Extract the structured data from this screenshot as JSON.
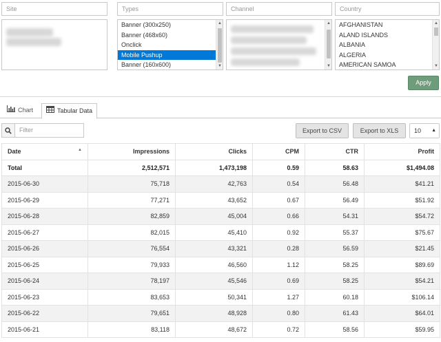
{
  "filters": {
    "site": {
      "title": "Site"
    },
    "types": {
      "title": "Types",
      "options": [
        "Banner (300x250)",
        "Banner (468x60)",
        "Onclick",
        "Mobile Pushup",
        "Banner (160x600)"
      ],
      "selected_index": 3
    },
    "channel": {
      "title": "Channel"
    },
    "country": {
      "title": "Country",
      "options": [
        "AFGHANISTAN",
        "ALAND ISLANDS",
        "ALBANIA",
        "ALGERIA",
        "AMERICAN SAMOA"
      ]
    },
    "apply_label": "Apply"
  },
  "tabs": [
    {
      "label": "Chart",
      "icon": "bar-chart-icon",
      "active": false
    },
    {
      "label": "Tabular Data",
      "icon": "table-icon",
      "active": true
    }
  ],
  "toolbar": {
    "filter_placeholder": "Filter",
    "export_csv": "Export to CSV",
    "export_xls": "Export to XLS",
    "page_size": "10"
  },
  "table": {
    "columns": [
      "Date",
      "Impressions",
      "Clicks",
      "CPM",
      "CTR",
      "Profit"
    ],
    "total": {
      "date": "Total",
      "impressions": "2,512,571",
      "clicks": "1,473,198",
      "cpm": "0.59",
      "ctr": "58.63",
      "profit": "$1,494.08"
    },
    "rows": [
      {
        "date": "2015-06-30",
        "impressions": "75,718",
        "clicks": "42,763",
        "cpm": "0.54",
        "ctr": "56.48",
        "profit": "$41.21"
      },
      {
        "date": "2015-06-29",
        "impressions": "77,271",
        "clicks": "43,652",
        "cpm": "0.67",
        "ctr": "56.49",
        "profit": "$51.92"
      },
      {
        "date": "2015-06-28",
        "impressions": "82,859",
        "clicks": "45,004",
        "cpm": "0.66",
        "ctr": "54.31",
        "profit": "$54.72"
      },
      {
        "date": "2015-06-27",
        "impressions": "82,015",
        "clicks": "45,410",
        "cpm": "0.92",
        "ctr": "55.37",
        "profit": "$75.67"
      },
      {
        "date": "2015-06-26",
        "impressions": "76,554",
        "clicks": "43,321",
        "cpm": "0.28",
        "ctr": "56.59",
        "profit": "$21.45"
      },
      {
        "date": "2015-06-25",
        "impressions": "79,933",
        "clicks": "46,560",
        "cpm": "1.12",
        "ctr": "58.25",
        "profit": "$89.69"
      },
      {
        "date": "2015-06-24",
        "impressions": "78,197",
        "clicks": "45,546",
        "cpm": "0.69",
        "ctr": "58.25",
        "profit": "$54.21"
      },
      {
        "date": "2015-06-23",
        "impressions": "83,653",
        "clicks": "50,341",
        "cpm": "1.27",
        "ctr": "60.18",
        "profit": "$106.14"
      },
      {
        "date": "2015-06-22",
        "impressions": "79,651",
        "clicks": "48,928",
        "cpm": "0.80",
        "ctr": "61.43",
        "profit": "$64.01"
      },
      {
        "date": "2015-06-21",
        "impressions": "83,118",
        "clicks": "48,672",
        "cpm": "0.72",
        "ctr": "58.56",
        "profit": "$59.95"
      }
    ]
  },
  "colors": {
    "selection": "#0078d7",
    "apply_button": "#6f9c7a",
    "stripe": "#f2f2f2"
  }
}
